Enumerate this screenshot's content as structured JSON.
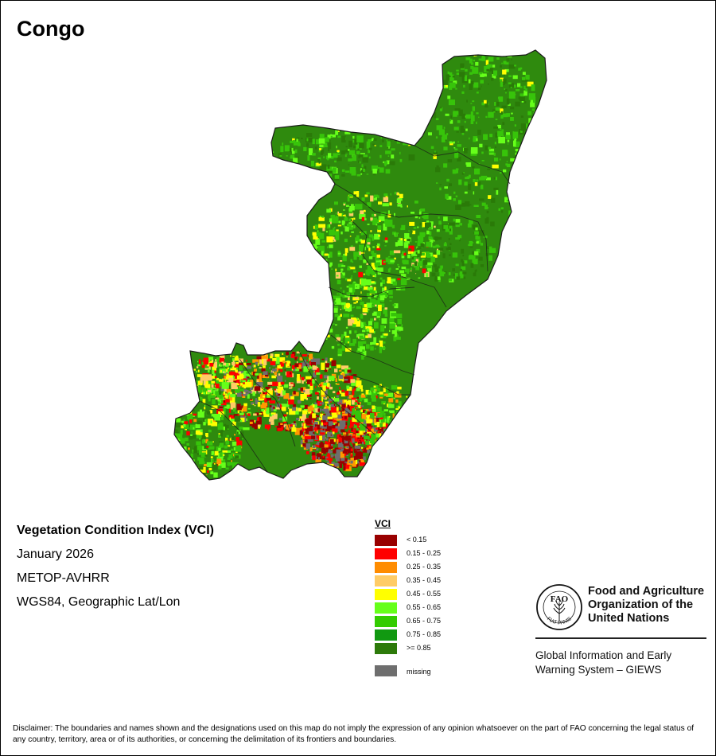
{
  "map": {
    "title": "Congo",
    "info": {
      "index_name": "Vegetation Condition Index (VCI)",
      "date": "January 2026",
      "sensor": "METOP-AVHRR",
      "projection": "WGS84, Geographic Lat/Lon"
    },
    "colors": {
      "base": "#2f8a0e",
      "dark": "#2a7a08",
      "light_green": "#37c40a",
      "bright_green": "#66ff1a",
      "yellow": "#ffff00",
      "light_orange": "#ffcc66",
      "orange": "#ff9900",
      "red": "#ff0000",
      "dark_red": "#990000",
      "missing": "#6e6e6e",
      "border": "#1a1a1a"
    }
  },
  "legend": {
    "title": "VCI",
    "items": [
      {
        "label": "< 0.15",
        "color": "#990000"
      },
      {
        "label": "0.15 - 0.25",
        "color": "#ff0000"
      },
      {
        "label": "0.25 - 0.35",
        "color": "#ff8c00"
      },
      {
        "label": "0.35 - 0.45",
        "color": "#ffcc66"
      },
      {
        "label": "0.45 - 0.55",
        "color": "#ffff00"
      },
      {
        "label": "0.55 - 0.65",
        "color": "#66ff1a"
      },
      {
        "label": "0.65 - 0.75",
        "color": "#33cc00"
      },
      {
        "label": "0.75 - 0.85",
        "color": "#119911"
      },
      {
        "label": ">= 0.85",
        "color": "#2d7a0a"
      }
    ],
    "missing": {
      "label": "missing",
      "color": "#6e6e6e"
    }
  },
  "fao": {
    "logo_letters": "FAO",
    "logo_motto": "FIAT PANIS",
    "name": "Food and Agriculture\nOrganization of the\nUnited Nations",
    "program": "Global Information and Early\nWarning System – GIEWS"
  },
  "disclaimer": "Disclaimer: The boundaries and names shown and the designations used on this map do not imply the expression of any opinion whatsoever on the part of FAO concerning the legal status of any country, territory, area or of its authorities, or concerning the delimitation of its frontiers and boundaries."
}
